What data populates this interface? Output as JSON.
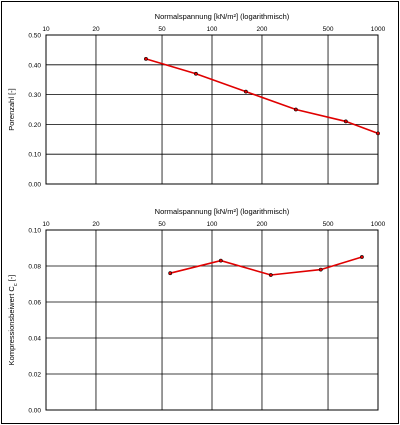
{
  "chart_data": [
    {
      "type": "line",
      "xlabel": "Normalspannung [kN/m²] (logarithmisch)",
      "ylabel": "Porenzahl [-]",
      "x_scale": "log",
      "xlim": [
        10,
        1000
      ],
      "ylim": [
        0,
        0.5
      ],
      "x_ticks": [
        "10",
        "20",
        "50",
        "100",
        "200",
        "500",
        "1000"
      ],
      "y_ticks": [
        "0.00",
        "0.10",
        "0.20",
        "0.30",
        "0.40",
        "0.50"
      ],
      "grid": true,
      "series": [
        {
          "color": "#e00000",
          "x": [
            40,
            80,
            160,
            320,
            640,
            1000
          ],
          "y": [
            0.42,
            0.37,
            0.31,
            0.25,
            0.21,
            0.17
          ]
        }
      ]
    },
    {
      "type": "line",
      "xlabel": "Normalspannung [kN/m²] (logarithmisch)",
      "ylabel": "Kompressionsbeiwert Cc [-]",
      "ylabel_sub": "c",
      "x_scale": "log",
      "xlim": [
        10,
        1000
      ],
      "ylim": [
        0,
        0.1
      ],
      "x_ticks": [
        "10",
        "20",
        "50",
        "100",
        "200",
        "500",
        "1000"
      ],
      "y_ticks": [
        "0.00",
        "0.02",
        "0.04",
        "0.06",
        "0.08",
        "0.10"
      ],
      "grid": true,
      "series": [
        {
          "color": "#e00000",
          "x": [
            56,
            113,
            226,
            452,
            800
          ],
          "y": [
            0.076,
            0.083,
            0.075,
            0.078,
            0.085
          ]
        }
      ]
    }
  ]
}
